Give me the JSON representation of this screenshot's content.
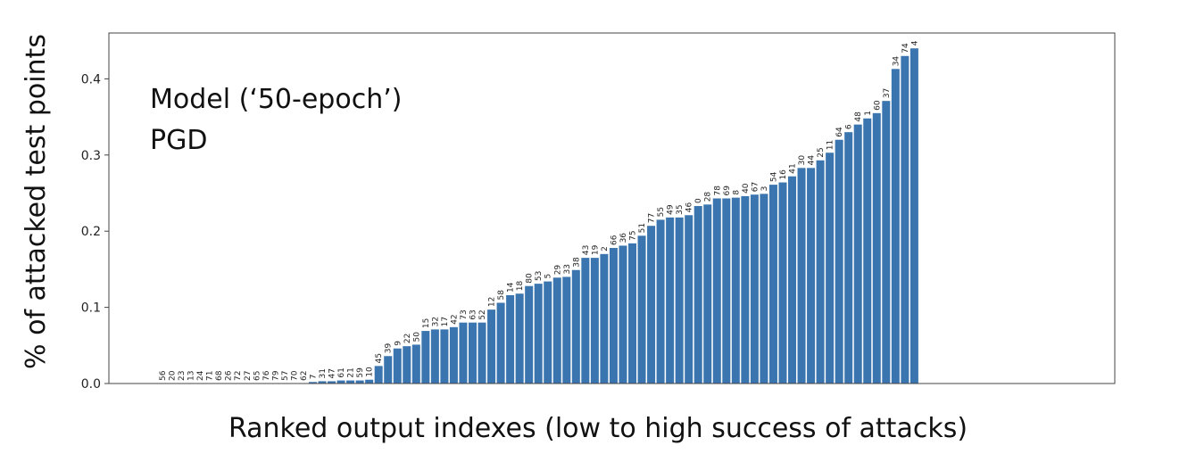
{
  "chart_data": {
    "type": "bar",
    "ylabel": "% of attacked test points",
    "xlabel": "Ranked output indexes (low to high success of attacks)",
    "annotations": [
      "Model (‘50-epoch’)",
      "PGD"
    ],
    "ylim": [
      0,
      0.46
    ],
    "yticks": [
      "0.0",
      "0.1",
      "0.2",
      "0.3",
      "0.4"
    ],
    "grid": false,
    "bar_color": "#3b75af",
    "categories": [
      "56",
      "20",
      "23",
      "13",
      "24",
      "71",
      "68",
      "26",
      "72",
      "27",
      "65",
      "76",
      "79",
      "57",
      "70",
      "62",
      "7",
      "31",
      "47",
      "61",
      "21",
      "59",
      "10",
      "45",
      "39",
      "9",
      "22",
      "50",
      "15",
      "32",
      "17",
      "42",
      "73",
      "63",
      "52",
      "12",
      "58",
      "14",
      "18",
      "80",
      "53",
      "5",
      "29",
      "33",
      "38",
      "43",
      "19",
      "2",
      "66",
      "36",
      "75",
      "51",
      "77",
      "55",
      "49",
      "35",
      "46",
      "0",
      "28",
      "78",
      "69",
      "8",
      "40",
      "67",
      "3",
      "54",
      "16",
      "41",
      "30",
      "44",
      "25",
      "11",
      "64",
      "6",
      "48",
      "1",
      "60",
      "37",
      "34",
      "74",
      "4"
    ],
    "values": [
      0,
      0,
      0,
      0,
      0,
      0,
      0,
      0,
      0,
      0,
      0,
      0,
      0,
      0,
      0,
      0,
      0.002,
      0.003,
      0.003,
      0.004,
      0.004,
      0.004,
      0.005,
      0.023,
      0.036,
      0.046,
      0.049,
      0.051,
      0.069,
      0.071,
      0.071,
      0.074,
      0.08,
      0.08,
      0.08,
      0.097,
      0.106,
      0.116,
      0.118,
      0.128,
      0.131,
      0.134,
      0.139,
      0.14,
      0.149,
      0.165,
      0.165,
      0.17,
      0.178,
      0.181,
      0.184,
      0.194,
      0.207,
      0.215,
      0.218,
      0.218,
      0.221,
      0.233,
      0.235,
      0.243,
      0.243,
      0.244,
      0.246,
      0.248,
      0.249,
      0.261,
      0.264,
      0.272,
      0.283,
      0.283,
      0.293,
      0.303,
      0.32,
      0.33,
      0.34,
      0.348,
      0.355,
      0.371,
      0.413,
      0.43,
      0.44
    ]
  }
}
